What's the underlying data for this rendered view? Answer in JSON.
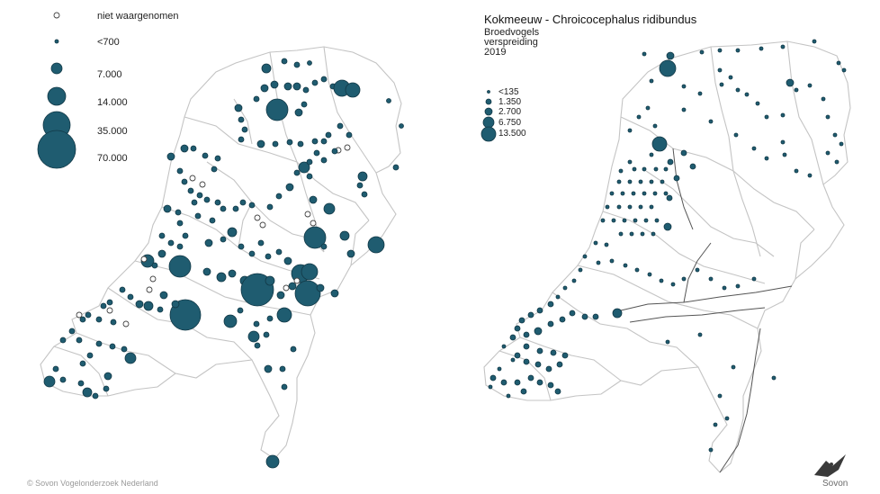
{
  "left_map": {
    "legend": [
      {
        "label": "niet waargenomen",
        "type": "hollow"
      },
      {
        "label": "<700",
        "type": "filled"
      },
      {
        "label": "7.000",
        "type": "filled"
      },
      {
        "label": "14.000",
        "type": "filled"
      },
      {
        "label": "35.000",
        "type": "filled"
      },
      {
        "label": "70.000",
        "type": "filled"
      }
    ]
  },
  "right_map": {
    "title": "Kokmeeuw - Chroicocephalus ridibundus",
    "subtitle_line1": "Broedvogels",
    "subtitle_line2": "verspreiding",
    "subtitle_line3": "2019",
    "legend": [
      {
        "label": "<135"
      },
      {
        "label": "1.350"
      },
      {
        "label": "2.700"
      },
      {
        "label": "6.750"
      },
      {
        "label": "13.500"
      }
    ]
  },
  "colors": {
    "marker_fill": "#1f5c70",
    "marker_stroke": "#123846",
    "boundary": "#c8c8c8",
    "river": "#555555"
  },
  "footer": {
    "copyright": "© Sovon Vogelonderzoek Nederland",
    "logo": "Sovon"
  }
}
